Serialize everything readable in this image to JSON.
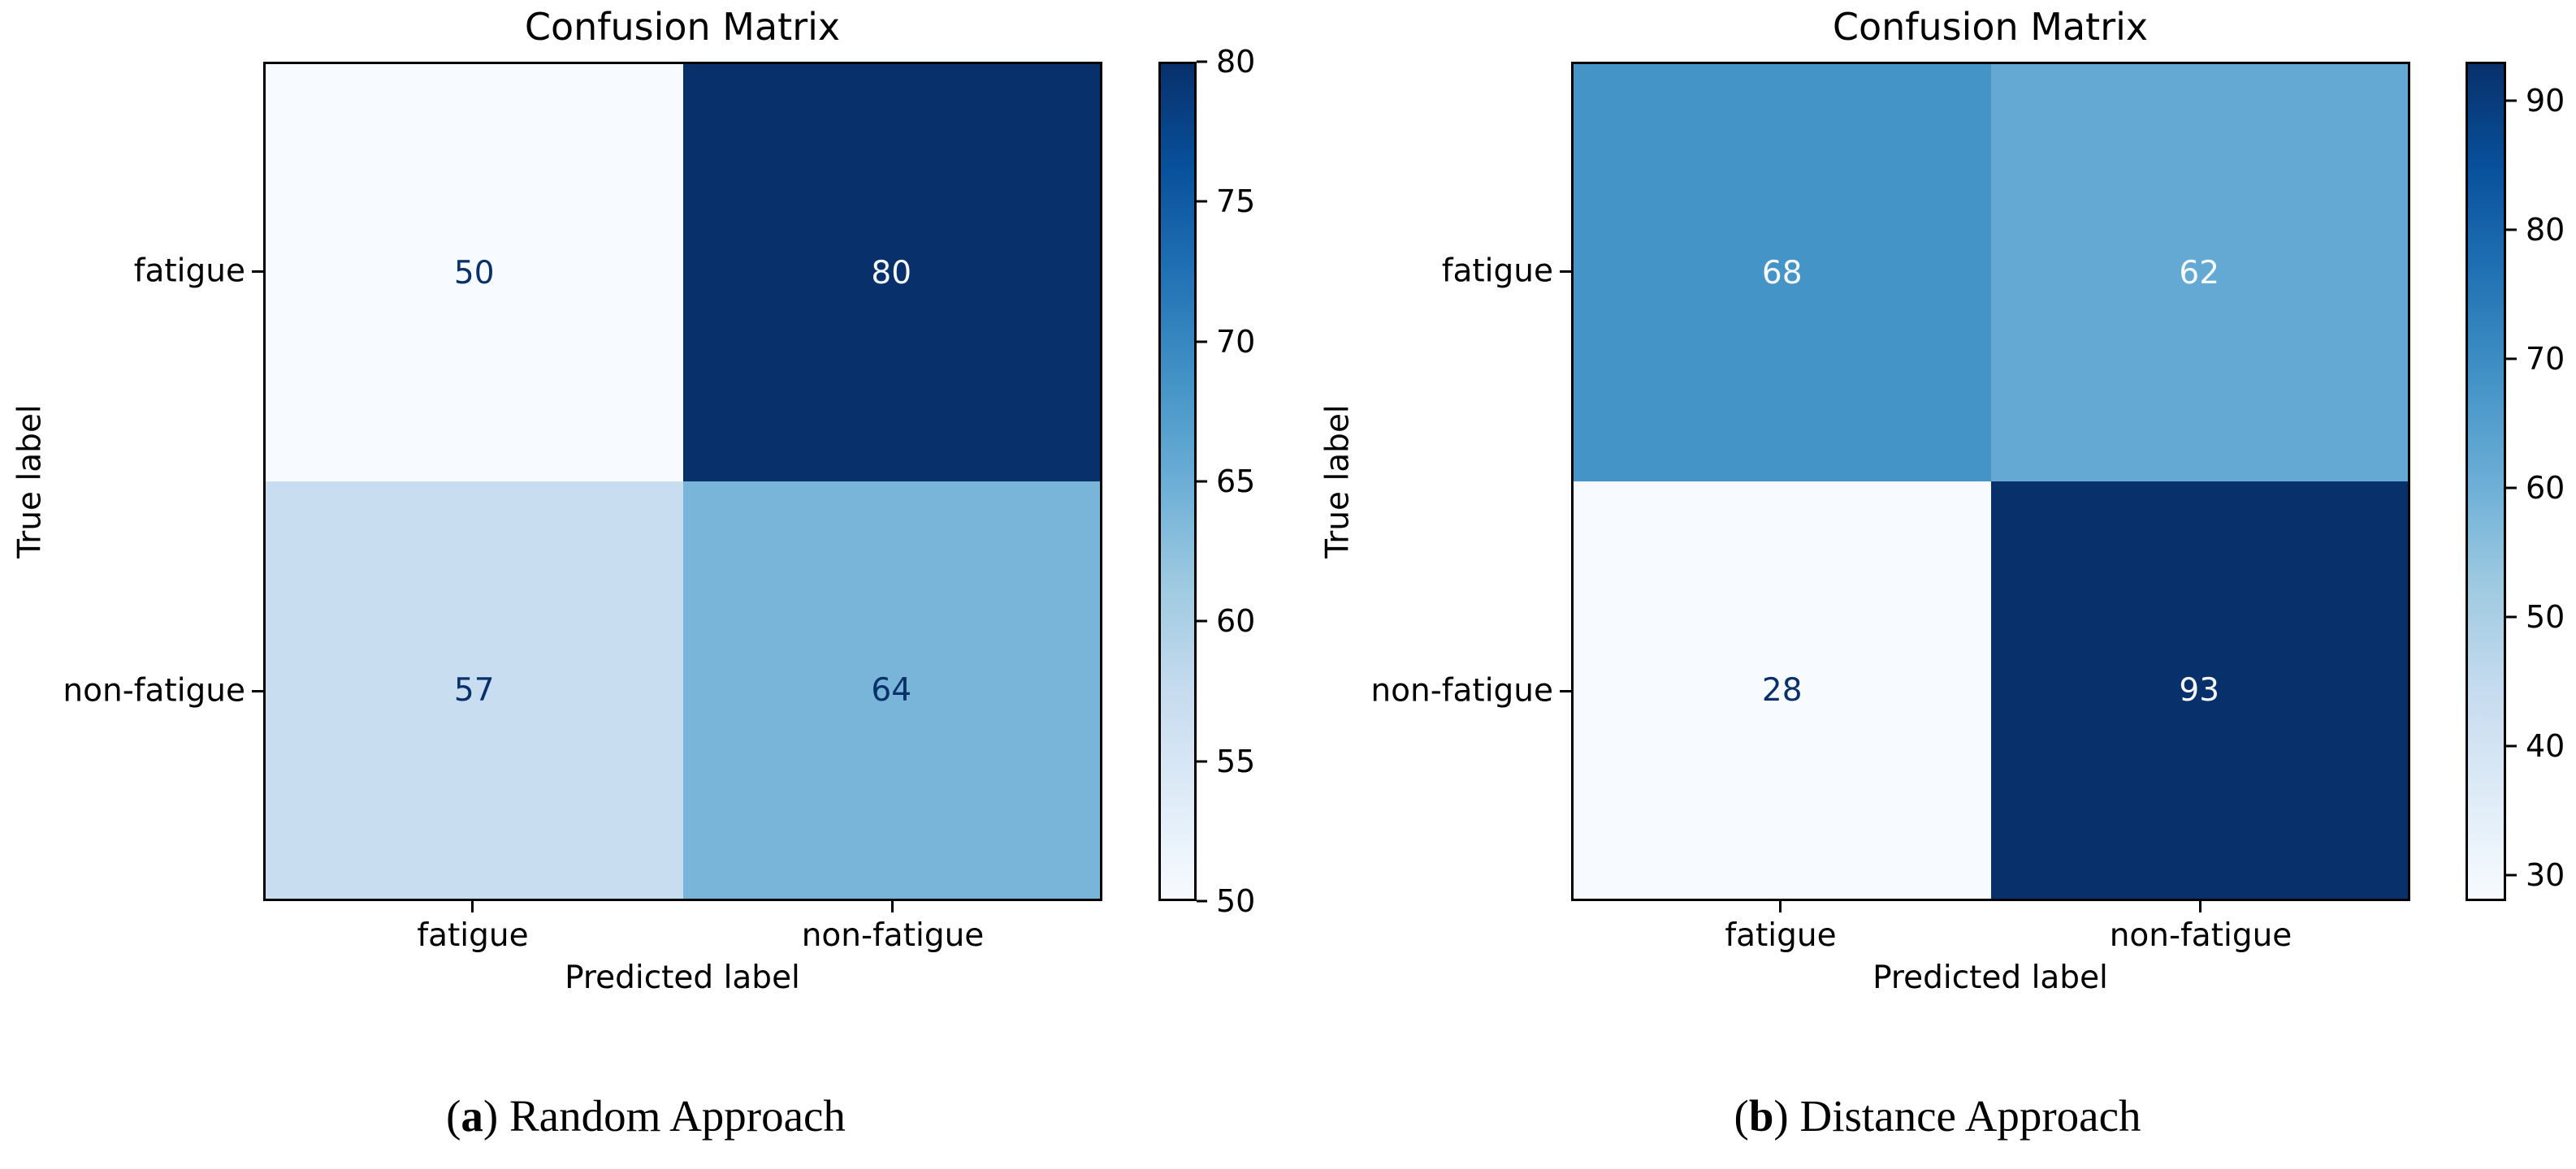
{
  "page": {
    "background": "#ffffff"
  },
  "colors": {
    "colormap": "Blues",
    "cmap_stops": [
      "#f7fbff",
      "#deebf7",
      "#c6dbef",
      "#9ecae1",
      "#6baed6",
      "#4292c6",
      "#2171b5",
      "#08519c",
      "#08306b"
    ],
    "cell_text_dark": "#08306b",
    "cell_text_light": "#f7fbff",
    "axis_text": "#000000"
  },
  "chart_data": [
    {
      "type": "heatmap",
      "title": "Confusion Matrix",
      "xlabel": "Predicted label",
      "ylabel": "True label",
      "x_categories": [
        "fatigue",
        "non-fatigue"
      ],
      "y_categories": [
        "fatigue",
        "non-fatigue"
      ],
      "values": [
        [
          50,
          80
        ],
        [
          57,
          64
        ]
      ],
      "vmin": 50,
      "vmax": 80,
      "colorbar_ticks": [
        50,
        55,
        60,
        65,
        70,
        75,
        80
      ],
      "colormap": "Blues",
      "legend_position": "right-colorbar",
      "grid": false,
      "caption": {
        "open": "(",
        "letter": "a",
        "close": ")",
        "text": " Random Approach"
      }
    },
    {
      "type": "heatmap",
      "title": "Confusion Matrix",
      "xlabel": "Predicted label",
      "ylabel": "True label",
      "x_categories": [
        "fatigue",
        "non-fatigue"
      ],
      "y_categories": [
        "fatigue",
        "non-fatigue"
      ],
      "values": [
        [
          68,
          62
        ],
        [
          28,
          93
        ]
      ],
      "vmin": 28,
      "vmax": 93,
      "colorbar_ticks": [
        30,
        40,
        50,
        60,
        70,
        80,
        90
      ],
      "colormap": "Blues",
      "legend_position": "right-colorbar",
      "grid": false,
      "caption": {
        "open": "(",
        "letter": "b",
        "close": ")",
        "text": " Distance Approach"
      }
    }
  ]
}
